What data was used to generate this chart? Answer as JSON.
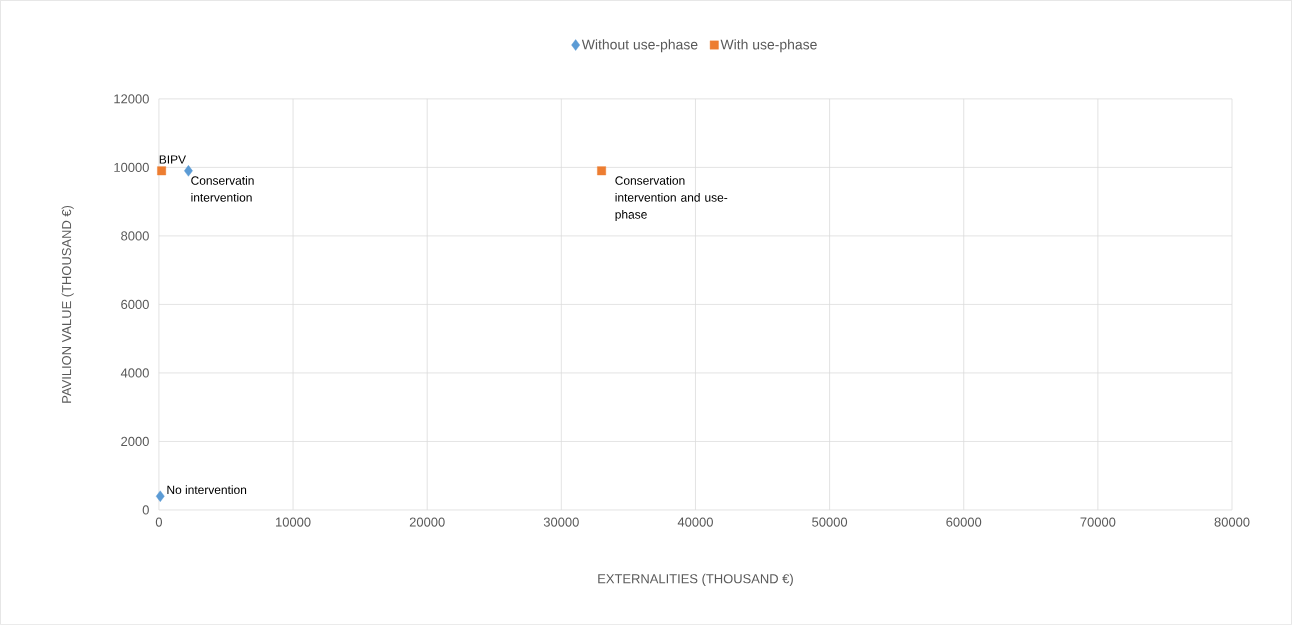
{
  "chart_data": {
    "type": "scatter",
    "xlabel": "EXTERNALITIES (THOUSAND €)",
    "ylabel": "PAVILION VALUE (THOUSAND €)",
    "series": [
      {
        "name": "Without use-phase",
        "color": "#5b9bd5",
        "marker": "diamond",
        "x": [
          2200,
          100
        ],
        "values": [
          9900,
          400
        ]
      },
      {
        "name": "With use-phase",
        "color": "#ed7d31",
        "marker": "square",
        "x": [
          200,
          33000
        ],
        "values": [
          9900,
          9900
        ]
      }
    ],
    "xlim": [
      0,
      80000
    ],
    "xticks": [
      0,
      10000,
      20000,
      30000,
      40000,
      50000,
      60000,
      70000,
      80000
    ],
    "ylim": [
      0,
      12000
    ],
    "yticks": [
      0,
      2000,
      4000,
      6000,
      8000,
      10000,
      12000
    ],
    "grid": true,
    "legend": "top",
    "annotations": [
      {
        "text": "Conservatin intervention",
        "x": 2200,
        "y": 9900
      },
      {
        "text": "No intervention",
        "x": 100,
        "y": 400
      },
      {
        "text": "BIPV",
        "x": 200,
        "y": 9900
      },
      {
        "text": "Conservation intervention and use-phase",
        "x": 33000,
        "y": 9900
      }
    ]
  }
}
